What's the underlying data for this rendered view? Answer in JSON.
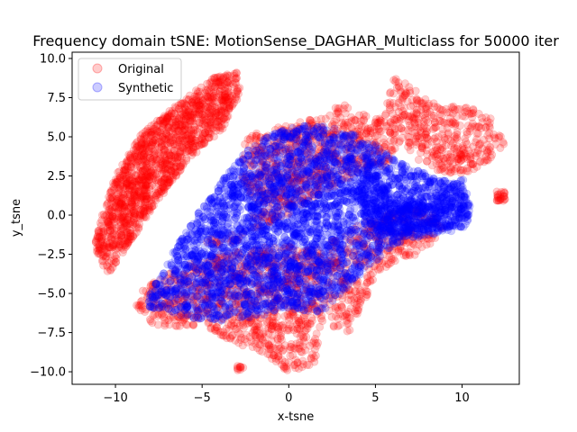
{
  "chart_data": {
    "type": "scatter",
    "title": "Frequency domain tSNE: MotionSense_DAGHAR_Multiclass for 50000 iter",
    "xlabel": "x-tsne",
    "ylabel": "y_tsne",
    "xlim": [
      -12.5,
      13.3
    ],
    "ylim": [
      -10.8,
      10.4
    ],
    "x_ticks": [
      -10,
      -5,
      0,
      5,
      10
    ],
    "y_ticks": [
      -10.0,
      -7.5,
      -5.0,
      -2.5,
      0.0,
      2.5,
      5.0,
      7.5,
      10.0
    ],
    "x_tick_labels": [
      "−10",
      "−5",
      "0",
      "5",
      "10"
    ],
    "y_tick_labels": [
      "−10.0",
      "−7.5",
      "−5.0",
      "−2.5",
      "0.0",
      "2.5",
      "5.0",
      "7.5",
      "10.0"
    ],
    "grid": false,
    "legend_position": "top-left",
    "marker_alpha": 0.2,
    "series": [
      {
        "name": "Original",
        "color": "#ff0000",
        "clusters": [
          {
            "polygon": [
              [
                -11.2,
                -2.0
              ],
              [
                -10.5,
                -3.9
              ],
              [
                -9.3,
                -2.0
              ],
              [
                -8.0,
                0.2
              ],
              [
                -6.5,
                2.5
              ],
              [
                -5.0,
                4.2
              ],
              [
                -3.8,
                5.5
              ],
              [
                -2.8,
                7.8
              ],
              [
                -2.9,
                9.3
              ],
              [
                -4.5,
                8.7
              ],
              [
                -6.5,
                7.0
              ],
              [
                -8.5,
                5.2
              ],
              [
                -10.0,
                2.5
              ],
              [
                -10.8,
                0.0
              ]
            ],
            "count": 1400
          },
          {
            "polygon": [
              [
                -9.0,
                -6.0
              ],
              [
                -7.5,
                -7.2
              ],
              [
                -5.0,
                -7.0
              ],
              [
                -3.0,
                -8.5
              ],
              [
                -2.0,
                -8.5
              ],
              [
                0.0,
                -10.0
              ],
              [
                1.5,
                -9.5
              ],
              [
                2.0,
                -7.0
              ],
              [
                3.5,
                -7.5
              ],
              [
                5.0,
                -4.0
              ],
              [
                6.0,
                -3.0
              ],
              [
                7.5,
                -2.5
              ],
              [
                9.0,
                -1.0
              ],
              [
                8.0,
                0.5
              ],
              [
                5.0,
                0.0
              ],
              [
                2.0,
                -2.0
              ],
              [
                -1.0,
                -2.0
              ],
              [
                -4.0,
                -2.5
              ],
              [
                -6.0,
                -3.0
              ],
              [
                -8.5,
                -4.8
              ]
            ],
            "count": 1300
          },
          {
            "polygon": [
              [
                -5.5,
                -1.5
              ],
              [
                -4.0,
                -2.0
              ],
              [
                -2.5,
                -1.5
              ],
              [
                -2.0,
                0.5
              ],
              [
                -2.8,
                2.5
              ],
              [
                -2.5,
                5.0
              ],
              [
                -1.0,
                5.5
              ],
              [
                0.5,
                6.0
              ],
              [
                2.0,
                6.2
              ],
              [
                3.0,
                7.3
              ],
              [
                4.0,
                6.5
              ],
              [
                6.0,
                6.0
              ],
              [
                6.5,
                4.5
              ],
              [
                5.5,
                3.0
              ],
              [
                4.0,
                2.5
              ],
              [
                2.0,
                1.5
              ],
              [
                0.0,
                0.0
              ],
              [
                -2.0,
                -1.0
              ]
            ],
            "count": 700
          },
          {
            "polygon": [
              [
                5.5,
                6.5
              ],
              [
                6.0,
                8.8
              ],
              [
                7.5,
                8.0
              ],
              [
                8.5,
                7.0
              ],
              [
                10.0,
                7.0
              ],
              [
                11.5,
                6.5
              ],
              [
                12.5,
                4.5
              ],
              [
                11.0,
                3.0
              ],
              [
                9.5,
                2.5
              ],
              [
                8.0,
                3.0
              ],
              [
                7.0,
                4.0
              ],
              [
                6.0,
                5.5
              ]
            ],
            "count": 400
          },
          {
            "polygon": [
              [
                12.0,
                0.9
              ],
              [
                12.5,
                0.9
              ],
              [
                12.5,
                1.5
              ],
              [
                12.0,
                1.5
              ]
            ],
            "count": 25
          },
          {
            "polygon": [
              [
                -3.0,
                -9.9
              ],
              [
                -2.6,
                -9.9
              ],
              [
                -2.6,
                -9.6
              ],
              [
                -3.0,
                -9.6
              ]
            ],
            "count": 10
          }
        ]
      },
      {
        "name": "Synthetic",
        "color": "#0000ff",
        "clusters": [
          {
            "polygon": [
              [
                -8.3,
                -5.8
              ],
              [
                -7.8,
                -4.5
              ],
              [
                -6.5,
                -2.0
              ],
              [
                -5.0,
                0.5
              ],
              [
                -4.0,
                2.0
              ],
              [
                -2.5,
                4.0
              ],
              [
                -1.0,
                5.2
              ],
              [
                1.0,
                5.8
              ],
              [
                3.0,
                5.5
              ],
              [
                5.0,
                4.5
              ],
              [
                7.0,
                3.0
              ],
              [
                8.5,
                2.5
              ],
              [
                10.0,
                2.0
              ],
              [
                10.5,
                0.0
              ],
              [
                10.2,
                -0.8
              ],
              [
                8.0,
                -0.8
              ],
              [
                6.0,
                -2.0
              ],
              [
                4.5,
                -3.5
              ],
              [
                3.0,
                -5.0
              ],
              [
                2.0,
                -6.2
              ],
              [
                0.0,
                -6.0
              ],
              [
                -2.0,
                -6.5
              ],
              [
                -4.0,
                -6.8
              ],
              [
                -6.0,
                -6.5
              ]
            ],
            "count": 3800
          },
          {
            "polygon": [
              [
                4.5,
                4.0
              ],
              [
                6.0,
                1.0
              ],
              [
                8.0,
                0.8
              ],
              [
                10.0,
                2.5
              ],
              [
                10.5,
                0.5
              ],
              [
                9.5,
                -1.0
              ],
              [
                7.0,
                -1.5
              ],
              [
                5.0,
                -1.0
              ],
              [
                4.0,
                1.0
              ]
            ],
            "count": 600
          }
        ]
      }
    ]
  }
}
